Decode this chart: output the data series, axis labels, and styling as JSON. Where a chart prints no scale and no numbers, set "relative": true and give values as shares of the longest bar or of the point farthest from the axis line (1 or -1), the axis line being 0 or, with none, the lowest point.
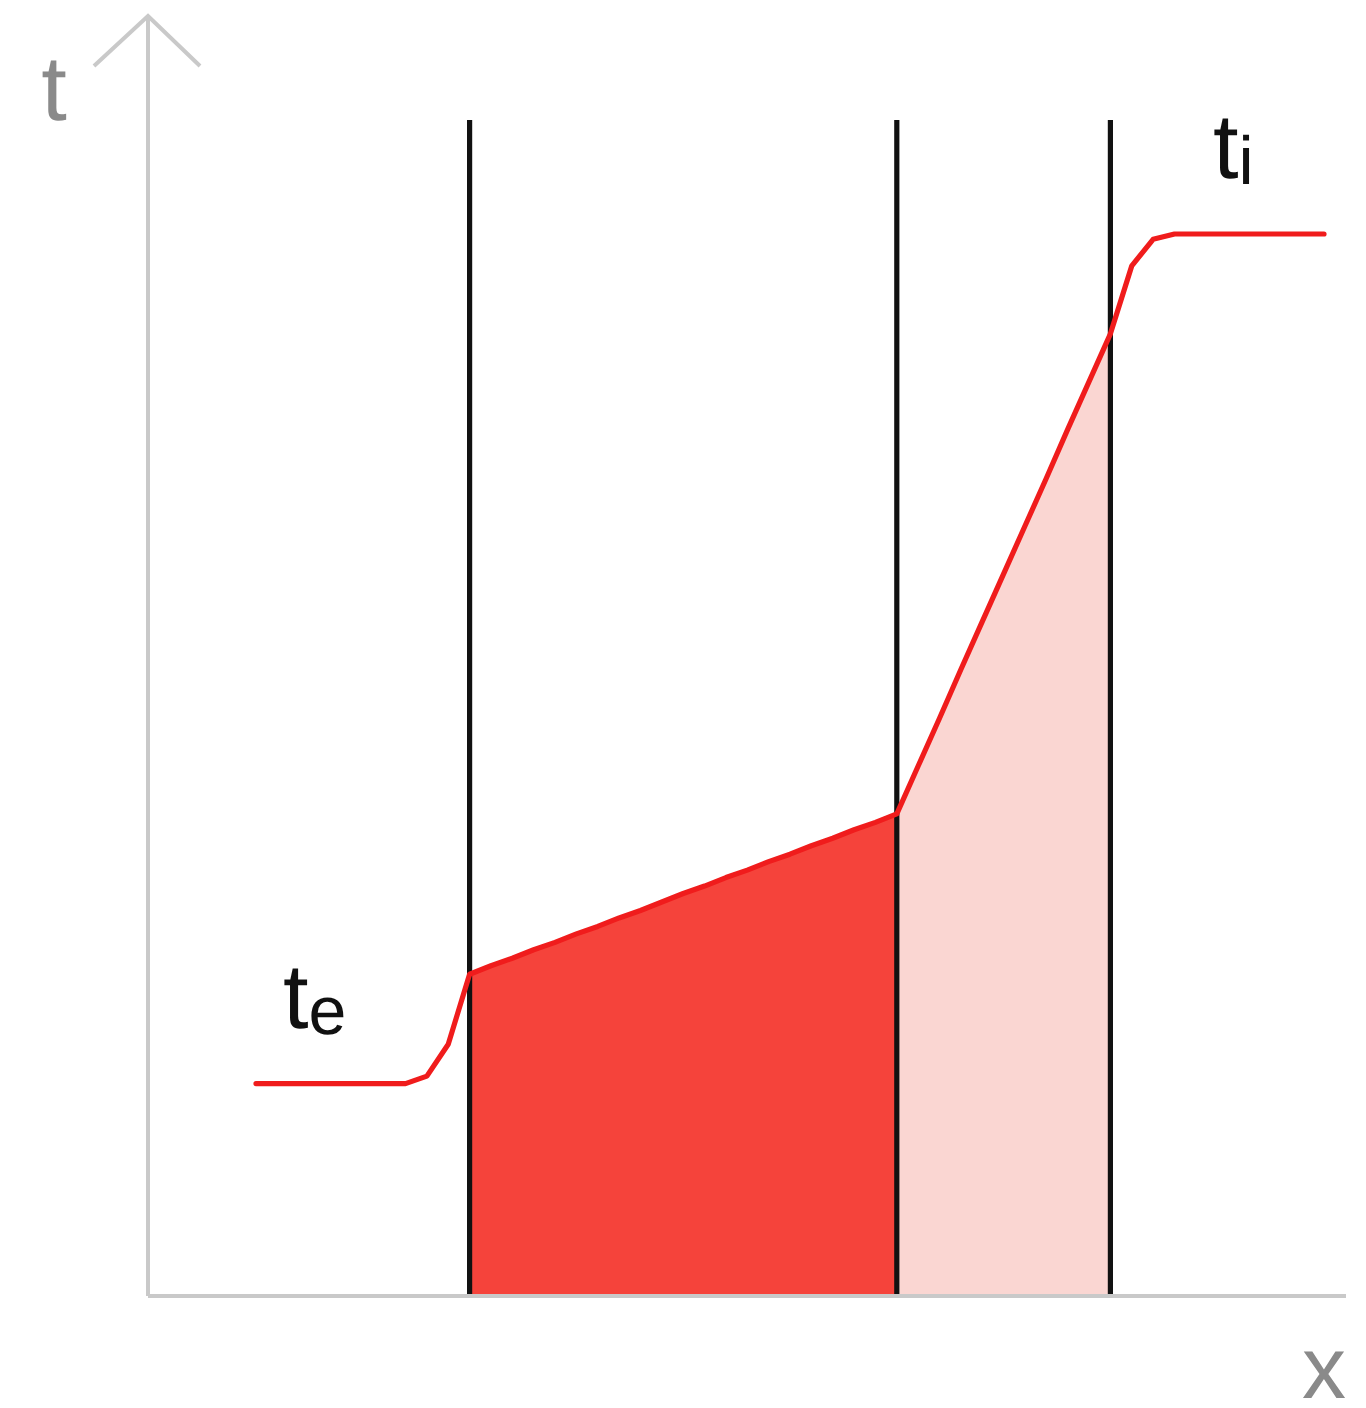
{
  "chart_data": {
    "type": "line",
    "relative": true,
    "xlabel": "x",
    "ylabel": "t",
    "grid": "x",
    "categories": [
      null,
      null,
      null,
      null,
      null,
      null,
      null,
      null,
      null,
      null,
      null,
      null,
      null,
      null,
      null,
      null,
      null,
      null,
      null,
      null,
      null,
      null,
      null,
      null,
      null,
      null,
      null,
      null,
      null,
      null,
      null,
      null,
      null,
      null,
      null,
      null,
      null,
      null,
      null,
      null,
      null,
      null,
      null,
      null,
      null,
      null,
      null,
      null,
      null,
      null,
      null
    ],
    "series": [
      {
        "type": "area",
        "color": "#f5433b",
        "values": [
          null,
          null,
          null,
          null,
          null,
          null,
          null,
          null,
          null,
          null,
          0.303,
          0.311,
          0.318,
          0.326,
          0.333,
          0.341,
          0.348,
          0.356,
          0.363,
          0.371,
          0.379,
          0.386,
          0.394,
          0.401,
          0.409,
          0.416,
          0.424,
          0.431,
          0.439,
          0.446,
          0.454,
          null,
          null,
          null,
          null,
          null,
          null,
          null,
          null,
          null,
          null,
          null,
          null,
          null,
          null,
          null,
          null,
          null,
          null,
          null,
          null
        ]
      },
      {
        "type": "area",
        "color": "#fad6d2",
        "values": [
          null,
          null,
          null,
          null,
          null,
          null,
          null,
          null,
          null,
          null,
          null,
          null,
          null,
          null,
          null,
          null,
          null,
          null,
          null,
          null,
          null,
          null,
          null,
          null,
          null,
          null,
          null,
          null,
          null,
          null,
          0.454,
          0.499,
          0.544,
          0.59,
          0.635,
          0.68,
          0.725,
          0.77,
          0.816,
          0.861,
          0.906,
          null,
          null,
          null,
          null,
          null,
          null,
          null,
          null,
          null,
          null
        ]
      },
      {
        "color": "#f01c1c",
        "values": [
          0.2,
          0.2,
          0.2,
          0.2,
          0.2,
          0.2,
          0.2,
          0.2,
          0.207,
          0.237,
          0.303,
          0.311,
          0.318,
          0.326,
          0.333,
          0.341,
          0.348,
          0.356,
          0.363,
          0.371,
          0.379,
          0.386,
          0.394,
          0.401,
          0.409,
          0.416,
          0.424,
          0.431,
          0.439,
          0.446,
          0.454,
          0.499,
          0.544,
          0.59,
          0.635,
          0.68,
          0.725,
          0.77,
          0.816,
          0.861,
          0.906,
          0.97,
          0.995,
          1,
          1,
          1,
          1,
          1,
          1,
          1,
          1
        ]
      }
    ],
    "annotations": [
      {
        "text": "t$_{e}$",
        "y": 0.2
      },
      {
        "text": "t$_{i}$",
        "y": 1
      }
    ]
  }
}
